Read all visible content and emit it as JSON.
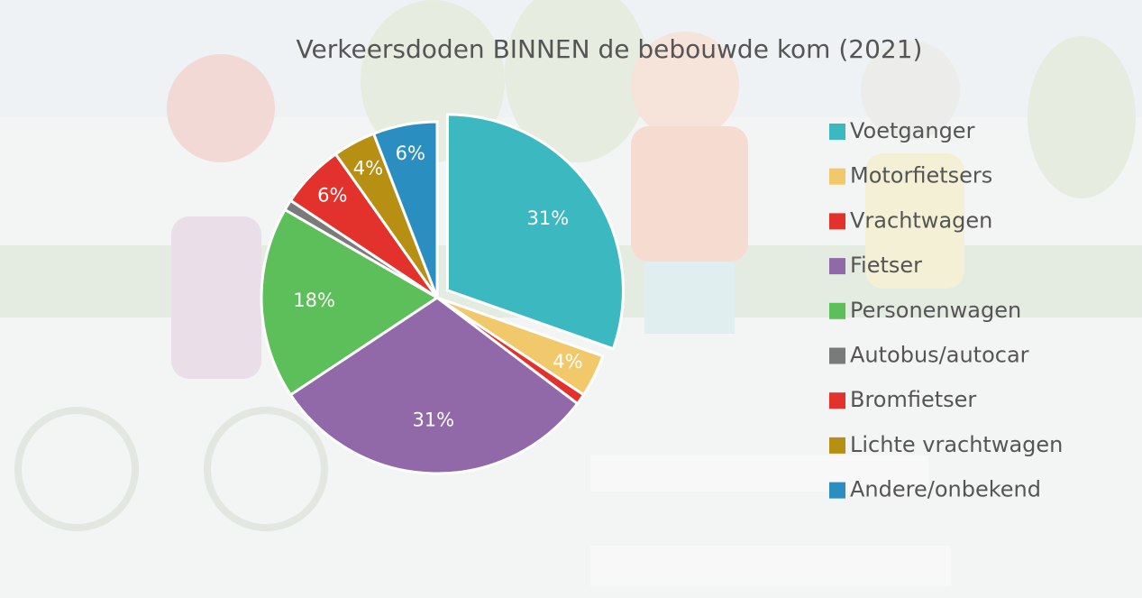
{
  "chart_data": {
    "type": "pie",
    "title": "Verkeersdoden BINNEN de bebouwde kom (2021)",
    "categories": [
      "Voetganger",
      "Motorfietsers",
      "Vrachtwagen",
      "Fietser",
      "Personenwagen",
      "Autobus/autocar",
      "Bromfietser",
      "Lichte vrachtwagen",
      "Andere/onbekend"
    ],
    "values": [
      31,
      4,
      1,
      31,
      18,
      1,
      6,
      4,
      6
    ],
    "value_labels": [
      "31%",
      "4%",
      null,
      "31%",
      "18%",
      null,
      "6%",
      "4%",
      "6%"
    ],
    "colors": [
      "#3cb8c0",
      "#f1c96b",
      "#e3322b",
      "#9169a8",
      "#5cbf59",
      "#7a7a7a",
      "#e3322b",
      "#b78f12",
      "#2a8fc0"
    ],
    "exploded": [
      0
    ],
    "legend": "right"
  }
}
